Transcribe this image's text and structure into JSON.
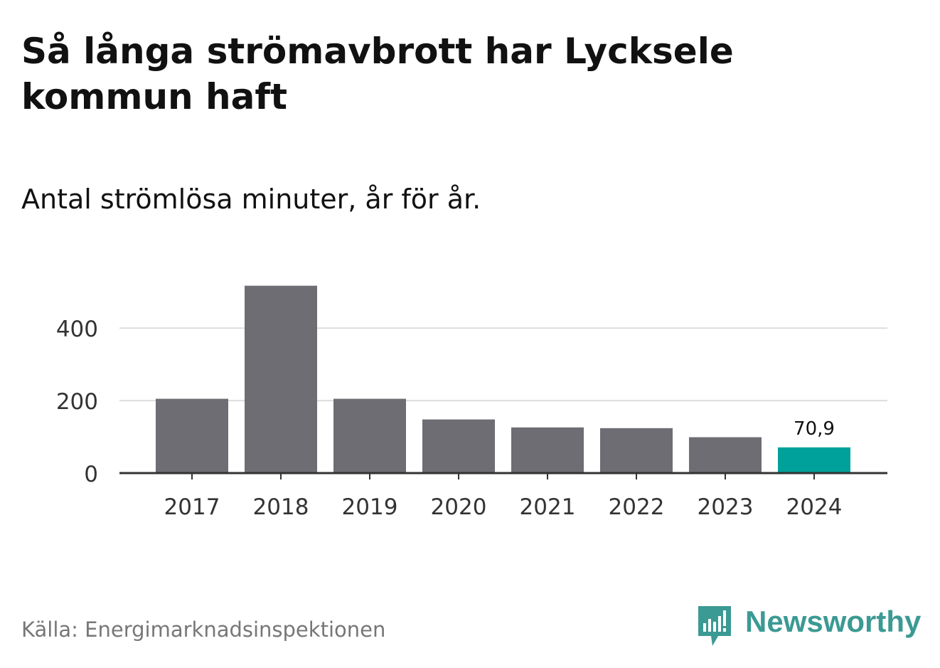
{
  "title": "Så långa strömavbrott har Lycksele kommun haft",
  "subtitle": "Antal strömlösa minuter, år för år.",
  "source": "Källa: Energimarknadsinspektionen",
  "brand": {
    "name": "Newsworthy",
    "icon": "newsworthy-logo-icon",
    "color": "#3b9a93"
  },
  "chart_data": {
    "type": "bar",
    "categories": [
      "2017",
      "2018",
      "2019",
      "2020",
      "2021",
      "2022",
      "2023",
      "2024"
    ],
    "values": [
      205,
      517,
      205,
      148,
      126,
      124,
      99,
      70.9
    ],
    "highlight_index": 7,
    "highlight_label": "70,9",
    "ylim": [
      0,
      530
    ],
    "yticks": [
      0,
      200,
      400
    ],
    "ytick_labels": [
      "0",
      "200",
      "400"
    ],
    "xlabel": "",
    "ylabel": "",
    "grid": true,
    "colors": {
      "bar": "#6e6d73",
      "highlight": "#00a19a",
      "grid": "#dddddd",
      "axis": "#333333"
    }
  }
}
